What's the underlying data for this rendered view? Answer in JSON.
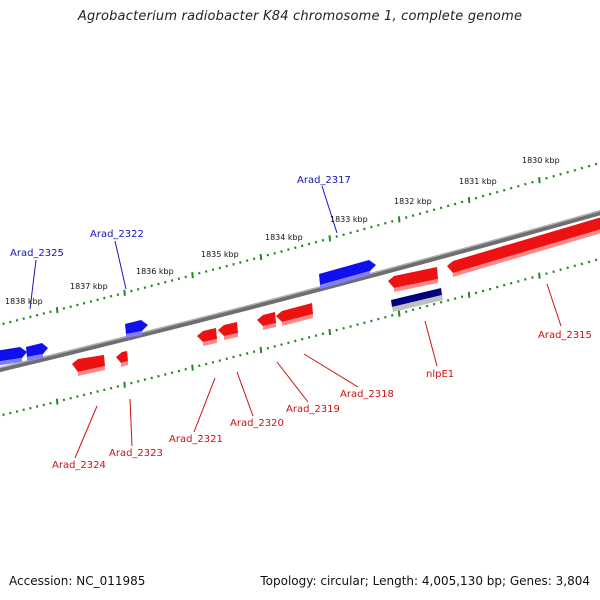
{
  "title": "Agrobacterium radiobacter K84 chromosome 1, complete genome",
  "footer": {
    "accession": "Accession: NC_011985",
    "stats": "Topology: circular; Length: 4,005,130 bp; Genes: 3,804"
  },
  "colors": {
    "forward": "#1010ee",
    "reverse": "#ee1111",
    "backbone": "#808080",
    "ticks": "#228822",
    "label_forward": "#1515bb",
    "label_reverse": "#cc1111",
    "rna_dark": "#000080",
    "rna_light": "#c0c0c0"
  },
  "tick_labels": [
    "1838 kbp",
    "1837 kbp",
    "1836 kbp",
    "1835 kbp",
    "1834 kbp",
    "1833 kbp",
    "1832 kbp",
    "1831 kbp",
    "1830 kbp"
  ],
  "genes_forward": [
    "Arad_2325",
    "Arad_2322",
    "Arad_2317"
  ],
  "genes_reverse": [
    "Arad_2324",
    "Arad_2323",
    "Arad_2321",
    "Arad_2320",
    "Arad_2319",
    "Arad_2318",
    "nlpE1",
    "Arad_2315"
  ]
}
